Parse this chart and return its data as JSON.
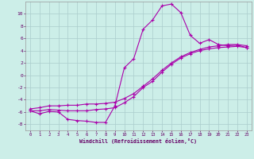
{
  "xlabel": "Windchill (Refroidissement éolien,°C)",
  "bg_color": "#cceee8",
  "line_color": "#aa00aa",
  "grid_color": "#aacccc",
  "xlim": [
    -0.5,
    23.5
  ],
  "ylim": [
    -9.0,
    12.0
  ],
  "xticks": [
    0,
    1,
    2,
    3,
    4,
    5,
    6,
    7,
    8,
    9,
    10,
    11,
    12,
    13,
    14,
    15,
    16,
    17,
    18,
    19,
    20,
    21,
    22,
    23
  ],
  "yticks": [
    -8,
    -6,
    -4,
    -2,
    0,
    2,
    4,
    6,
    8,
    10
  ],
  "line1_x": [
    0,
    1,
    2,
    3,
    4,
    5,
    6,
    7,
    8,
    9,
    10,
    11,
    12,
    13,
    14,
    15,
    16,
    17,
    18,
    19,
    20,
    21,
    22,
    23
  ],
  "line1_y": [
    -5.8,
    -6.3,
    -5.9,
    -6.0,
    -7.2,
    -7.4,
    -7.5,
    -7.7,
    -7.7,
    -5.0,
    1.2,
    2.7,
    7.5,
    9.0,
    11.3,
    11.6,
    10.2,
    6.5,
    5.2,
    5.8,
    5.0,
    4.8,
    4.9,
    4.5
  ],
  "line2_x": [
    0,
    1,
    2,
    3,
    4,
    5,
    6,
    7,
    8,
    9,
    10,
    11,
    12,
    13,
    14,
    15,
    16,
    17,
    18,
    19,
    20,
    21,
    22,
    23
  ],
  "line2_y": [
    -5.8,
    -5.8,
    -5.6,
    -5.7,
    -5.8,
    -5.8,
    -5.8,
    -5.6,
    -5.5,
    -5.3,
    -4.5,
    -3.5,
    -2.0,
    -1.0,
    0.5,
    1.8,
    2.8,
    3.5,
    4.0,
    4.3,
    4.5,
    4.6,
    4.7,
    4.5
  ],
  "line3_x": [
    0,
    1,
    2,
    3,
    4,
    5,
    6,
    7,
    8,
    9,
    10,
    11,
    12,
    13,
    14,
    15,
    16,
    17,
    18,
    19,
    20,
    21,
    22,
    23
  ],
  "line3_y": [
    -5.5,
    -5.3,
    -5.0,
    -5.0,
    -4.9,
    -4.9,
    -4.7,
    -4.7,
    -4.6,
    -4.4,
    -3.8,
    -3.0,
    -1.8,
    -0.6,
    0.8,
    2.0,
    3.0,
    3.7,
    4.2,
    4.6,
    4.8,
    5.0,
    5.0,
    4.8
  ]
}
